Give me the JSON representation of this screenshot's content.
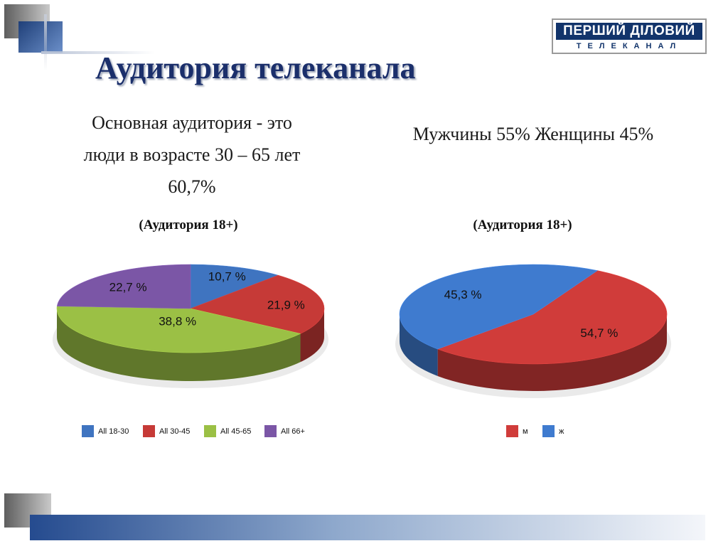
{
  "title": "Аудитория телеканала",
  "logo": {
    "top": "ПЕРШИЙ ДІЛОВИЙ",
    "bottom": "ТЕЛЕКАНАЛ"
  },
  "left_text": {
    "line1": "Основная аудитория  - это",
    "line2": "люди в возрасте 30 – 65 лет",
    "line3": "60,7%"
  },
  "right_text": "Мужчины 55% Женщины 45%",
  "audience_label_left": "(Аудитория 18+)",
  "audience_label_right": "(Аудитория 18+)",
  "chart_data": [
    {
      "type": "pie",
      "title": "(Аудитория 18+)",
      "labels": [
        "All 18-30",
        "All 30-45",
        "All 45-65",
        "All 66+"
      ],
      "values": [
        10.7,
        21.9,
        38.8,
        22.7
      ],
      "value_labels": [
        "10,7 %",
        "21,9 %",
        "38,8 %",
        "22,7 %"
      ],
      "colors": [
        "#3f74c0",
        "#c63a37",
        "#9bc045",
        "#7b56a6"
      ],
      "legend": "bottom"
    },
    {
      "type": "pie",
      "title": "(Аудитория 18+)",
      "labels": [
        "м",
        "ж"
      ],
      "values": [
        54.7,
        45.3
      ],
      "value_labels": [
        "54,7 %",
        "45,3 %"
      ],
      "colors": [
        "#d03c3a",
        "#3f7bcf"
      ],
      "legend": "bottom"
    }
  ]
}
